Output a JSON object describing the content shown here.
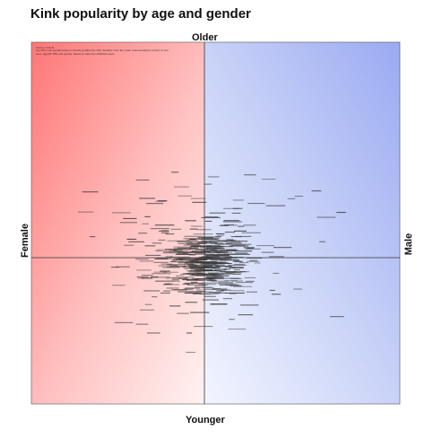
{
  "title": "Kink popularity by age and gender",
  "axis_labels": {
    "top": "Older",
    "bottom": "Younger",
    "left": "Female",
    "right": "Male"
  },
  "note": {
    "line1": "Source: FetLife",
    "line2": "Top 500 most popular kinks on FetLife graphed by their deviation from the mean representation(z-score) on two axes, age(18-105) and gender, based on data from 838,000 users."
  },
  "colors": {
    "female_quadrant": "#ff7f7f",
    "male_quadrant": "#9aaaf2",
    "axis_line": "#333333",
    "point_label": "#3a3a3a"
  },
  "chart_data": {
    "type": "scatter",
    "title": "Kink popularity by age and gender",
    "xlabel_left": "Female",
    "xlabel_right": "Male",
    "ylabel_top": "Older",
    "ylabel_bottom": "Younger",
    "x_measure": "gender z-score (negative = female, positive = male)",
    "y_measure": "age z-score (positive = older, negative = younger)",
    "xlim": [
      -3,
      3
    ],
    "ylim": [
      -3,
      3
    ],
    "grid": false,
    "legend": "none",
    "point_count": 500,
    "points_note": "Each point is a small text label of a kink name; individual labels are too small to read in the screenshot."
  }
}
